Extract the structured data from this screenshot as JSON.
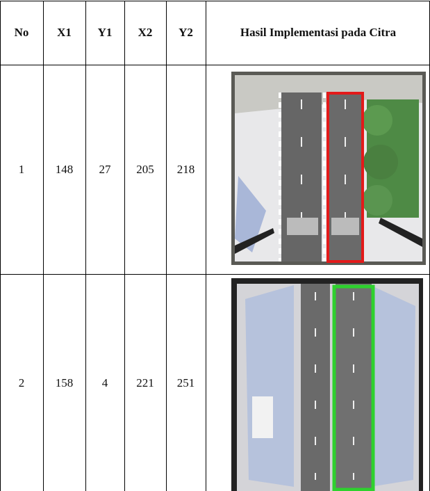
{
  "table": {
    "header": [
      "No",
      "X1",
      "Y1",
      "X2",
      "Y2",
      "Hasil Implementasi pada Citra"
    ],
    "rows": [
      [
        1,
        148,
        27,
        205,
        218
      ],
      [
        2,
        158,
        4,
        221,
        251
      ]
    ]
  }
}
